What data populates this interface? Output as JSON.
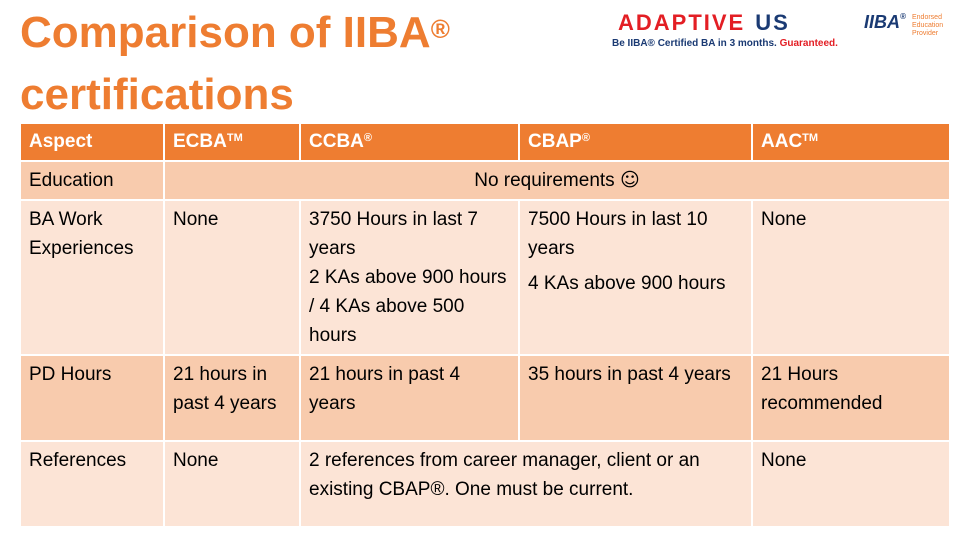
{
  "title": {
    "line1": "Comparison of IIBA",
    "reg": "®",
    "line2": "certifications"
  },
  "logo": {
    "brand": "ADAPTIVE",
    "brand_us": "US",
    "tagline_a": "Be IIBA® Certified BA in 3 months.",
    "tagline_b": "Guaranteed.",
    "iiba": "IIBA",
    "iiba_reg": "®",
    "endorsed": "Endorsed Education Provider"
  },
  "table": {
    "headers": [
      {
        "label": "Aspect",
        "mark": ""
      },
      {
        "label": "ECBA",
        "mark": "TM"
      },
      {
        "label": "CCBA",
        "mark": "®"
      },
      {
        "label": "CBAP",
        "mark": "®"
      },
      {
        "label": "AAC",
        "mark": "TM"
      }
    ],
    "education": {
      "aspect": "Education",
      "value": "No requirements",
      "smiley": "☺"
    },
    "work": {
      "aspect": "BA Work Experiences",
      "ecba": "None",
      "ccba_a": "3750 Hours in last 7 years",
      "ccba_b": "2 KAs above 900 hours / 4 KAs above 500 hours",
      "cbap_a": "7500 Hours in last 10 years",
      "cbap_b": "4 KAs above 900 hours",
      "aac": "None"
    },
    "pd": {
      "aspect": "PD Hours",
      "ecba": "21 hours in past 4 years",
      "ccba": "21 hours in past 4 years",
      "cbap": "35 hours in past 4 years",
      "aac": "21 Hours recommended"
    },
    "refs": {
      "aspect": "References",
      "ecba": "None",
      "ccba_cbap": "2 references from career manager, client or an existing CBAP®.  One must be current.",
      "aac": "None"
    }
  }
}
